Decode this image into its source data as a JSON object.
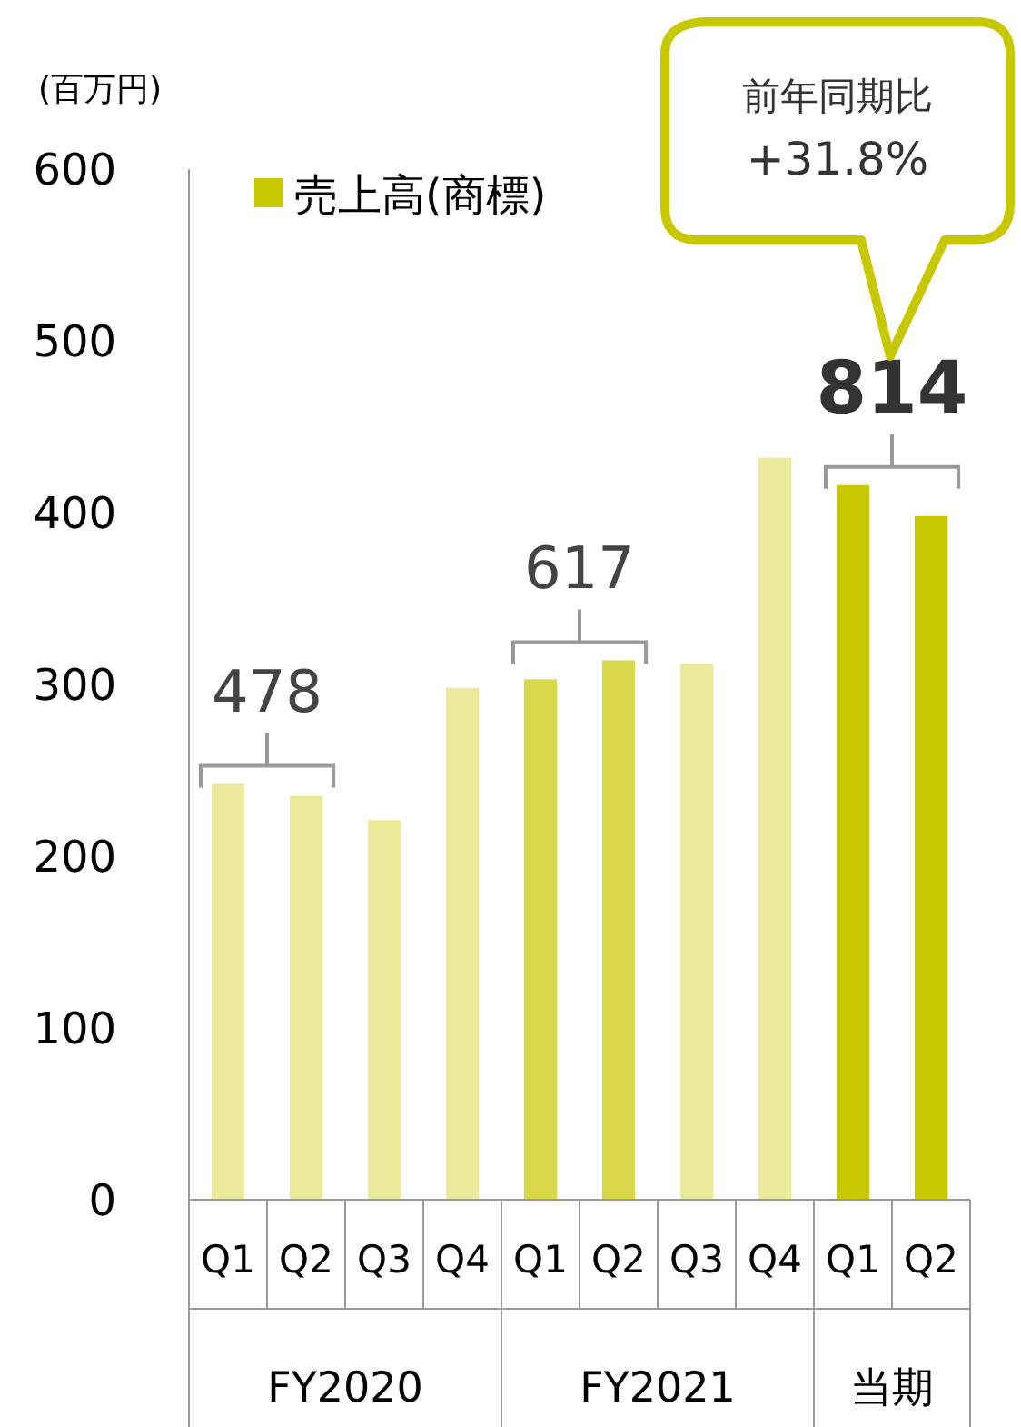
{
  "chart_data": {
    "type": "bar",
    "ylabel": "(百万円)",
    "categories": [
      "Q1",
      "Q2",
      "Q3",
      "Q4",
      "Q1",
      "Q2",
      "Q3",
      "Q4",
      "Q1",
      "Q2"
    ],
    "series": [
      {
        "name": "売上高(商標)",
        "color": "#c8c800",
        "colors": [
          "#ebe99a",
          "#ebe99a",
          "#ebe99a",
          "#ebe99a",
          "#d9d84a",
          "#d9d84a",
          "#ebe99a",
          "#ebe99a",
          "#c8c800",
          "#c8c800"
        ],
        "values": [
          242,
          235,
          221,
          298,
          303,
          314,
          312,
          432,
          416,
          398
        ]
      }
    ],
    "ylim": [
      0,
      600
    ],
    "yticks": [
      0,
      100,
      200,
      300,
      400,
      500,
      600
    ],
    "legend": "top left",
    "annotations": [
      "FY2020",
      "FY2021",
      "当期",
      "478",
      "617",
      "814",
      "前年同期比 +31.8%"
    ]
  }
}
